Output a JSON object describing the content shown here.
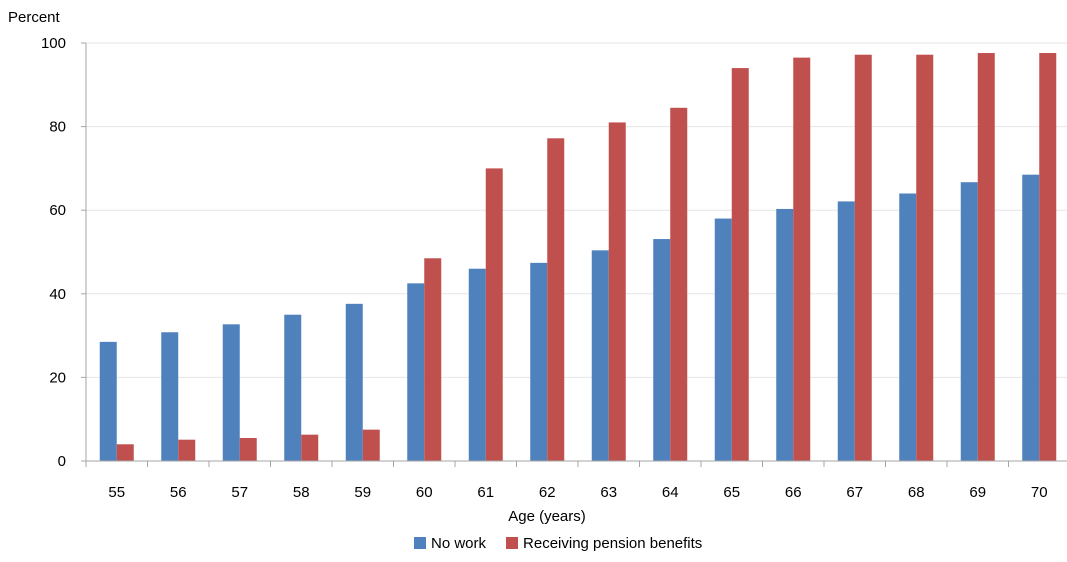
{
  "chart_data": {
    "type": "bar",
    "ylabel": "Percent",
    "xlabel": "Age (years)",
    "ylim": [
      0,
      100
    ],
    "yticks": [
      0,
      20,
      40,
      60,
      80,
      100
    ],
    "grid": true,
    "legend_position": "bottom",
    "categories": [
      "55",
      "56",
      "57",
      "58",
      "59",
      "60",
      "61",
      "62",
      "63",
      "64",
      "65",
      "66",
      "67",
      "68",
      "69",
      "70"
    ],
    "series": [
      {
        "name": "No work",
        "color": "#4f81bd",
        "values": [
          28.5,
          30.8,
          32.7,
          35.0,
          37.6,
          42.5,
          46.0,
          47.4,
          50.4,
          53.1,
          58.0,
          60.3,
          62.1,
          64.0,
          66.7,
          68.5
        ]
      },
      {
        "name": "Receiving pension benefits",
        "color": "#c0504d",
        "values": [
          4.0,
          5.1,
          5.5,
          6.3,
          7.5,
          48.5,
          70.0,
          77.2,
          81.0,
          84.5,
          94.0,
          96.5,
          97.2,
          97.2,
          97.6,
          97.6
        ]
      }
    ]
  }
}
